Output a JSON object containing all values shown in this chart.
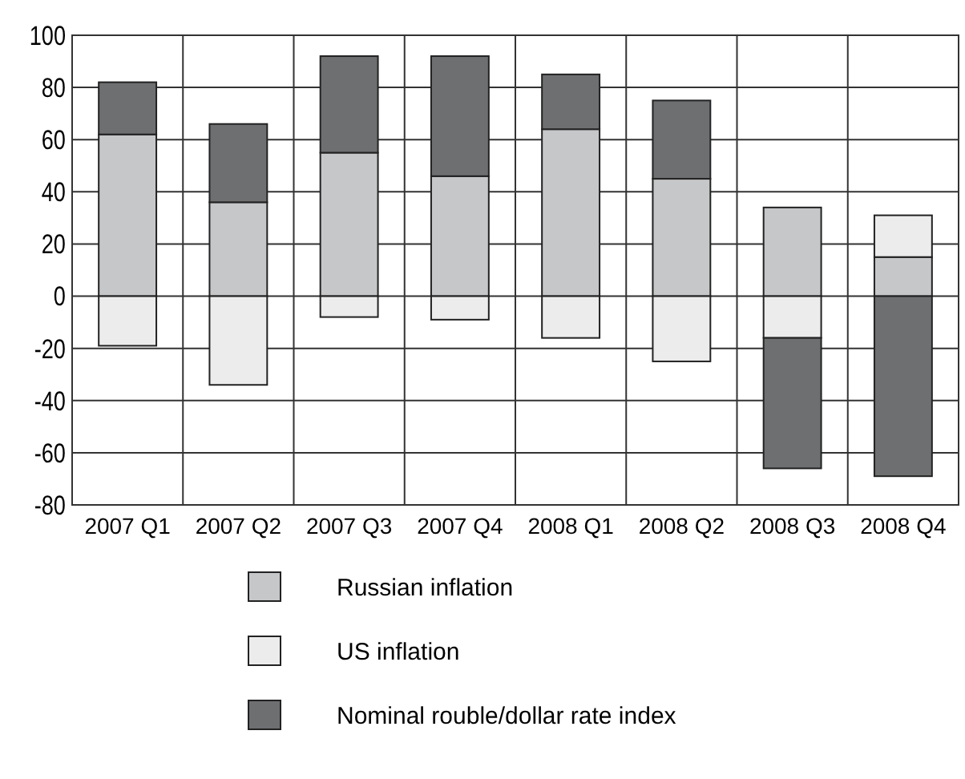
{
  "chart_data": {
    "type": "bar",
    "stacked": true,
    "categories": [
      "2007 Q1",
      "2007 Q2",
      "2007 Q3",
      "2007 Q4",
      "2008 Q1",
      "2008 Q2",
      "2008 Q3",
      "2008 Q4"
    ],
    "series": [
      {
        "name": "Russian inflation",
        "color": "#c6c7c9",
        "values": [
          62,
          36,
          55,
          46,
          64,
          45,
          34,
          15
        ]
      },
      {
        "name": "US inflation",
        "color": "#ececec",
        "values": [
          -19,
          -34,
          -8,
          -9,
          -16,
          -25,
          -16,
          16
        ]
      },
      {
        "name": "Nominal rouble/dollar rate index",
        "color": "#6e6f71",
        "values": [
          20,
          30,
          37,
          46,
          21,
          30,
          -50,
          -69
        ]
      }
    ],
    "ylim": [
      -80,
      100
    ],
    "yticks": [
      -80,
      -60,
      -40,
      -20,
      0,
      20,
      40,
      60,
      80,
      100
    ],
    "grid": true,
    "legend": "bottom"
  }
}
